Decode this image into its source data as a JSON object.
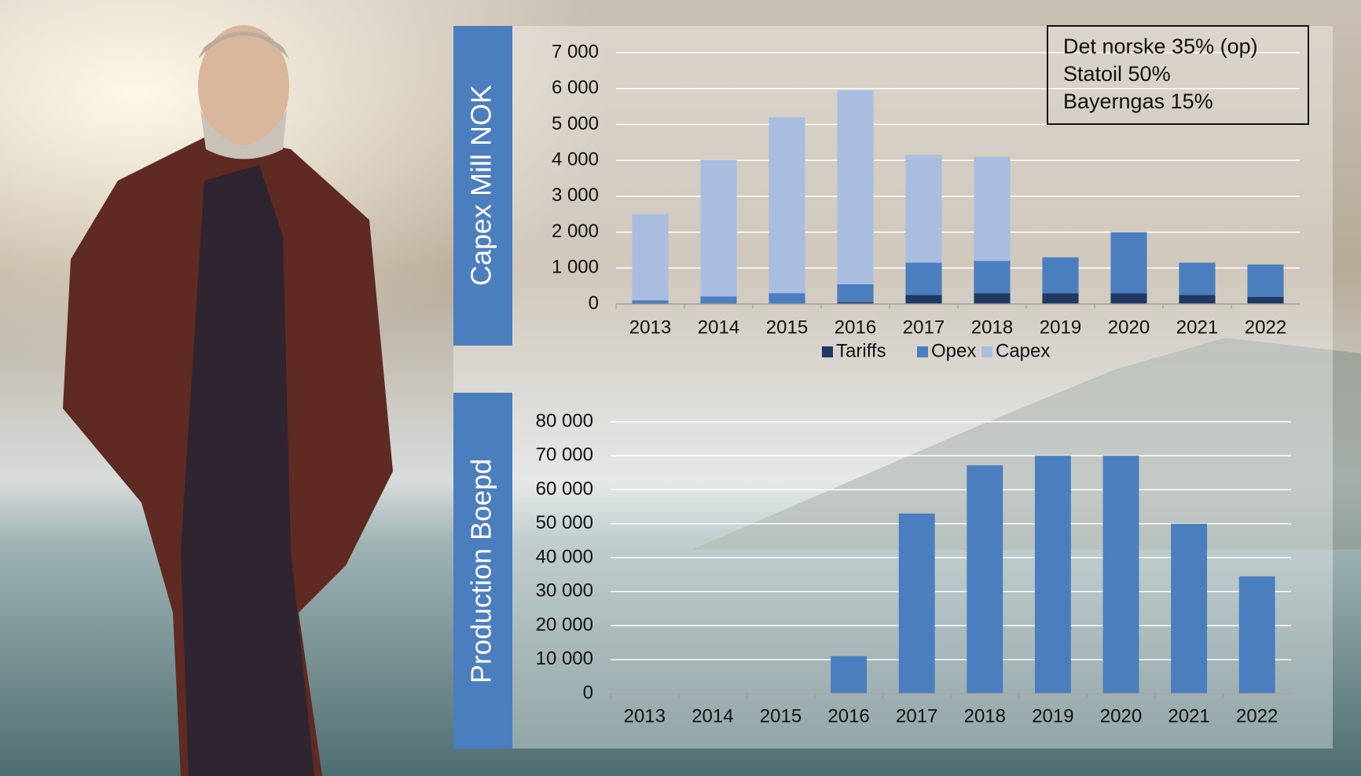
{
  "chart_data": [
    {
      "type": "bar",
      "stacked": true,
      "ylabel": "Capex Mill NOK",
      "categories": [
        "2013",
        "2014",
        "2015",
        "2016",
        "2017",
        "2018",
        "2019",
        "2020",
        "2021",
        "2022"
      ],
      "series": [
        {
          "name": "Tariffs",
          "color": "#1f3864",
          "values": [
            20,
            10,
            0,
            50,
            250,
            300,
            300,
            300,
            250,
            200
          ]
        },
        {
          "name": "Opex",
          "color": "#4a7ebf",
          "values": [
            80,
            200,
            300,
            500,
            900,
            900,
            1000,
            1700,
            900,
            900
          ]
        },
        {
          "name": "Capex",
          "color": "#a9bde0",
          "values": [
            2400,
            3800,
            4900,
            5400,
            3000,
            2900,
            0,
            0,
            0,
            0
          ]
        }
      ],
      "ylim": [
        0,
        7000
      ],
      "yticks": [
        0,
        {
          "value": 1000,
          "label": "1 000"
        },
        {
          "value": 2000,
          "label": "2 000"
        },
        {
          "value": 3000,
          "label": "3 000"
        },
        {
          "value": 4000,
          "label": "4 000"
        },
        {
          "value": 5000,
          "label": "5 000"
        },
        {
          "value": 6000,
          "label": "6 000"
        },
        {
          "value": 7000,
          "label": "7 000"
        }
      ],
      "grid": true,
      "legend": "bottom",
      "annotation": [
        "Det norske 35% (op)",
        "Statoil 50%",
        "Bayerngas 15%"
      ]
    },
    {
      "type": "bar",
      "ylabel": "Production Boepd",
      "categories": [
        "2013",
        "2014",
        "2015",
        "2016",
        "2017",
        "2018",
        "2019",
        "2020",
        "2021",
        "2022"
      ],
      "values": [
        0,
        0,
        0,
        11000,
        53000,
        67200,
        70000,
        70000,
        50000,
        34500
      ],
      "color": "#4a7ebf",
      "ylim": [
        0,
        80000
      ],
      "yticks": [
        0,
        {
          "value": 10000,
          "label": "10 000"
        },
        {
          "value": 20000,
          "label": "20 000"
        },
        {
          "value": 30000,
          "label": "30 000"
        },
        {
          "value": 40000,
          "label": "40 000"
        },
        {
          "value": 50000,
          "label": "50 000"
        },
        {
          "value": 60000,
          "label": "60 000"
        },
        {
          "value": 70000,
          "label": "70 000"
        },
        {
          "value": 80000,
          "label": "80 000"
        }
      ],
      "grid": true
    }
  ]
}
